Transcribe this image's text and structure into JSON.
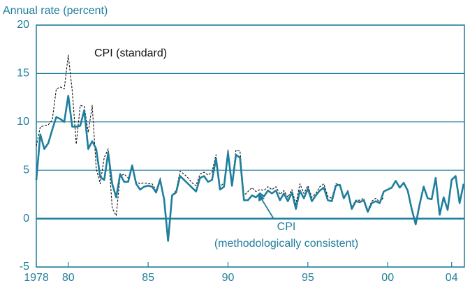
{
  "chart_data": {
    "type": "line",
    "ylabel": "Annual rate (percent)",
    "xlim": [
      1978,
      2004.8
    ],
    "ylim": [
      -5,
      20
    ],
    "yticks": [
      -5,
      0,
      5,
      10,
      15,
      20
    ],
    "xticks": [
      {
        "value": 1978,
        "label": "1978"
      },
      {
        "value": 1980,
        "label": "80"
      },
      {
        "value": 1985,
        "label": "85"
      },
      {
        "value": 1990,
        "label": "90"
      },
      {
        "value": 1995,
        "label": "95"
      },
      {
        "value": 2000,
        "label": "00"
      },
      {
        "value": 2004,
        "label": "04"
      }
    ],
    "grid": true,
    "x": [
      1978,
      1978.25,
      1978.5,
      1978.75,
      1979,
      1979.25,
      1979.5,
      1979.75,
      1980,
      1980.25,
      1980.5,
      1980.75,
      1981,
      1981.25,
      1981.5,
      1981.75,
      1982,
      1982.25,
      1982.5,
      1982.75,
      1983,
      1983.25,
      1983.5,
      1983.75,
      1984,
      1984.25,
      1984.5,
      1984.75,
      1985,
      1985.25,
      1985.5,
      1985.75,
      1986,
      1986.25,
      1986.5,
      1986.75,
      1987,
      1987.25,
      1987.5,
      1987.75,
      1988,
      1988.25,
      1988.5,
      1988.75,
      1989,
      1989.25,
      1989.5,
      1989.75,
      1990,
      1990.25,
      1990.5,
      1990.75,
      1991,
      1991.25,
      1991.5,
      1991.75,
      1992,
      1992.25,
      1992.5,
      1992.75,
      1993,
      1993.25,
      1993.5,
      1993.75,
      1994,
      1994.25,
      1994.5,
      1994.75,
      1995,
      1995.25,
      1995.5,
      1995.75,
      1996,
      1996.25,
      1996.5,
      1996.75,
      1997,
      1997.25,
      1997.5,
      1997.75,
      1998,
      1998.25,
      1998.5,
      1998.75,
      1999,
      1999.25,
      1999.5,
      1999.75,
      2000,
      2000.25,
      2000.5,
      2000.75,
      2001,
      2001.25,
      2001.5,
      2001.75,
      2002,
      2002.25,
      2002.5,
      2002.75,
      2003,
      2003.25,
      2003.5,
      2003.75,
      2004,
      2004.25,
      2004.5,
      2004.75
    ],
    "series": [
      {
        "name": "CPI (standard)",
        "color": "#111111",
        "dashed": true,
        "values": [
          7.5,
          9.5,
          9.6,
          9.7,
          10.2,
          13.4,
          13.6,
          13.4,
          16.9,
          13.2,
          7.7,
          11.7,
          11.6,
          8.9,
          11.7,
          5.2,
          3.6,
          6.3,
          7.2,
          1.1,
          0.3,
          4.4,
          4.6,
          4.2,
          5.2,
          3.8,
          3.6,
          3.7,
          3.6,
          3.6,
          2.9,
          4.2,
          2.1,
          -2.0,
          2.4,
          2.9,
          4.9,
          4.6,
          4.2,
          3.7,
          3.4,
          4.6,
          4.8,
          4.5,
          4.8,
          6.6,
          3.3,
          3.7,
          7.1,
          3.7,
          7.1,
          7.0,
          2.4,
          2.8,
          3.2,
          2.8,
          3.0,
          2.9,
          3.3,
          3.0,
          3.3,
          2.5,
          2.9,
          2.2,
          3.0,
          1.5,
          3.6,
          2.6,
          3.4,
          2.2,
          2.6,
          3.3,
          3.6,
          2.3,
          2.1,
          3.6,
          3.5,
          2.2,
          2.9,
          1.2,
          1.9,
          1.9,
          2.1,
          0.9,
          1.8,
          2.1,
          1.7,
          2.2,
          null,
          null,
          null,
          null,
          null,
          null,
          null,
          null,
          null,
          null,
          null,
          null,
          null,
          null,
          null,
          null,
          null,
          null,
          null,
          null
        ]
      },
      {
        "name": "CPI (methodologically consistent)",
        "color": "#1f7e9c",
        "dashed": false,
        "values": [
          4.0,
          8.7,
          7.2,
          7.8,
          9.2,
          10.5,
          10.3,
          10.0,
          12.7,
          9.5,
          9.5,
          9.6,
          11.2,
          7.2,
          8.0,
          7.2,
          4.3,
          4.0,
          6.8,
          3.6,
          2.2,
          4.6,
          3.8,
          3.8,
          5.5,
          3.6,
          3.0,
          3.3,
          3.4,
          3.3,
          2.7,
          4.0,
          2.0,
          -2.3,
          2.4,
          2.7,
          4.4,
          4.0,
          3.6,
          3.2,
          2.8,
          4.2,
          4.4,
          3.8,
          4.0,
          6.2,
          3.0,
          3.3,
          6.8,
          3.4,
          6.6,
          6.3,
          1.9,
          1.9,
          2.4,
          2.2,
          2.6,
          2.3,
          2.9,
          2.6,
          2.9,
          1.9,
          2.6,
          1.8,
          2.7,
          1.0,
          2.9,
          2.1,
          3.1,
          1.8,
          2.4,
          2.9,
          3.2,
          1.9,
          1.8,
          3.4,
          3.5,
          2.1,
          2.8,
          1.0,
          1.8,
          1.7,
          1.9,
          0.7,
          1.6,
          1.8,
          1.6,
          2.8,
          3.0,
          3.2,
          3.9,
          3.2,
          3.7,
          2.9,
          1.0,
          -0.6,
          1.5,
          3.3,
          2.1,
          2.0,
          4.2,
          0.4,
          2.2,
          0.9,
          4.0,
          4.4,
          1.6,
          3.6
        ]
      }
    ]
  }
}
